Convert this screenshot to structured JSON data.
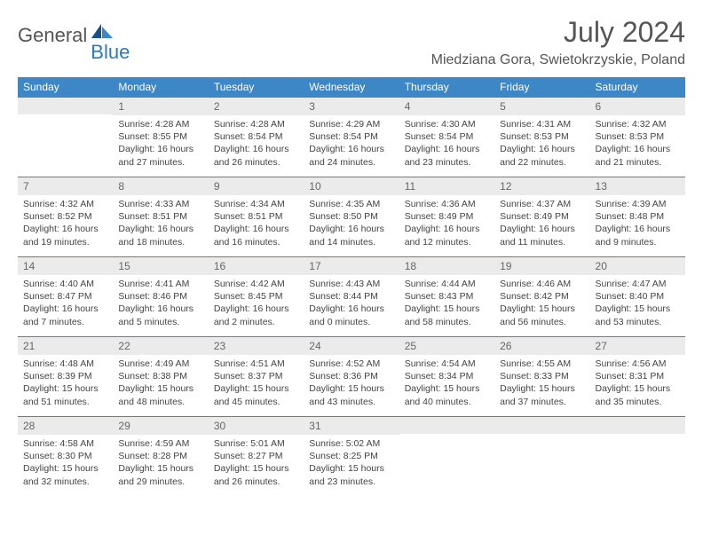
{
  "brand": {
    "general": "General",
    "blue": "Blue"
  },
  "title": "July 2024",
  "location": "Miedziana Gora, Swietokrzyskie, Poland",
  "colors": {
    "header_bg": "#3d87c7",
    "header_fg": "#ffffff",
    "daynum_bg": "#ebebeb",
    "row_border": "#3d87c7",
    "text": "#444444",
    "brand_gray": "#555555",
    "brand_blue": "#2b7abf"
  },
  "weekdays": [
    "Sunday",
    "Monday",
    "Tuesday",
    "Wednesday",
    "Thursday",
    "Friday",
    "Saturday"
  ],
  "weeks": [
    [
      {
        "n": "",
        "sr": "",
        "ss": "",
        "dl": ""
      },
      {
        "n": "1",
        "sr": "Sunrise: 4:28 AM",
        "ss": "Sunset: 8:55 PM",
        "dl": "Daylight: 16 hours and 27 minutes."
      },
      {
        "n": "2",
        "sr": "Sunrise: 4:28 AM",
        "ss": "Sunset: 8:54 PM",
        "dl": "Daylight: 16 hours and 26 minutes."
      },
      {
        "n": "3",
        "sr": "Sunrise: 4:29 AM",
        "ss": "Sunset: 8:54 PM",
        "dl": "Daylight: 16 hours and 24 minutes."
      },
      {
        "n": "4",
        "sr": "Sunrise: 4:30 AM",
        "ss": "Sunset: 8:54 PM",
        "dl": "Daylight: 16 hours and 23 minutes."
      },
      {
        "n": "5",
        "sr": "Sunrise: 4:31 AM",
        "ss": "Sunset: 8:53 PM",
        "dl": "Daylight: 16 hours and 22 minutes."
      },
      {
        "n": "6",
        "sr": "Sunrise: 4:32 AM",
        "ss": "Sunset: 8:53 PM",
        "dl": "Daylight: 16 hours and 21 minutes."
      }
    ],
    [
      {
        "n": "7",
        "sr": "Sunrise: 4:32 AM",
        "ss": "Sunset: 8:52 PM",
        "dl": "Daylight: 16 hours and 19 minutes."
      },
      {
        "n": "8",
        "sr": "Sunrise: 4:33 AM",
        "ss": "Sunset: 8:51 PM",
        "dl": "Daylight: 16 hours and 18 minutes."
      },
      {
        "n": "9",
        "sr": "Sunrise: 4:34 AM",
        "ss": "Sunset: 8:51 PM",
        "dl": "Daylight: 16 hours and 16 minutes."
      },
      {
        "n": "10",
        "sr": "Sunrise: 4:35 AM",
        "ss": "Sunset: 8:50 PM",
        "dl": "Daylight: 16 hours and 14 minutes."
      },
      {
        "n": "11",
        "sr": "Sunrise: 4:36 AM",
        "ss": "Sunset: 8:49 PM",
        "dl": "Daylight: 16 hours and 12 minutes."
      },
      {
        "n": "12",
        "sr": "Sunrise: 4:37 AM",
        "ss": "Sunset: 8:49 PM",
        "dl": "Daylight: 16 hours and 11 minutes."
      },
      {
        "n": "13",
        "sr": "Sunrise: 4:39 AM",
        "ss": "Sunset: 8:48 PM",
        "dl": "Daylight: 16 hours and 9 minutes."
      }
    ],
    [
      {
        "n": "14",
        "sr": "Sunrise: 4:40 AM",
        "ss": "Sunset: 8:47 PM",
        "dl": "Daylight: 16 hours and 7 minutes."
      },
      {
        "n": "15",
        "sr": "Sunrise: 4:41 AM",
        "ss": "Sunset: 8:46 PM",
        "dl": "Daylight: 16 hours and 5 minutes."
      },
      {
        "n": "16",
        "sr": "Sunrise: 4:42 AM",
        "ss": "Sunset: 8:45 PM",
        "dl": "Daylight: 16 hours and 2 minutes."
      },
      {
        "n": "17",
        "sr": "Sunrise: 4:43 AM",
        "ss": "Sunset: 8:44 PM",
        "dl": "Daylight: 16 hours and 0 minutes."
      },
      {
        "n": "18",
        "sr": "Sunrise: 4:44 AM",
        "ss": "Sunset: 8:43 PM",
        "dl": "Daylight: 15 hours and 58 minutes."
      },
      {
        "n": "19",
        "sr": "Sunrise: 4:46 AM",
        "ss": "Sunset: 8:42 PM",
        "dl": "Daylight: 15 hours and 56 minutes."
      },
      {
        "n": "20",
        "sr": "Sunrise: 4:47 AM",
        "ss": "Sunset: 8:40 PM",
        "dl": "Daylight: 15 hours and 53 minutes."
      }
    ],
    [
      {
        "n": "21",
        "sr": "Sunrise: 4:48 AM",
        "ss": "Sunset: 8:39 PM",
        "dl": "Daylight: 15 hours and 51 minutes."
      },
      {
        "n": "22",
        "sr": "Sunrise: 4:49 AM",
        "ss": "Sunset: 8:38 PM",
        "dl": "Daylight: 15 hours and 48 minutes."
      },
      {
        "n": "23",
        "sr": "Sunrise: 4:51 AM",
        "ss": "Sunset: 8:37 PM",
        "dl": "Daylight: 15 hours and 45 minutes."
      },
      {
        "n": "24",
        "sr": "Sunrise: 4:52 AM",
        "ss": "Sunset: 8:36 PM",
        "dl": "Daylight: 15 hours and 43 minutes."
      },
      {
        "n": "25",
        "sr": "Sunrise: 4:54 AM",
        "ss": "Sunset: 8:34 PM",
        "dl": "Daylight: 15 hours and 40 minutes."
      },
      {
        "n": "26",
        "sr": "Sunrise: 4:55 AM",
        "ss": "Sunset: 8:33 PM",
        "dl": "Daylight: 15 hours and 37 minutes."
      },
      {
        "n": "27",
        "sr": "Sunrise: 4:56 AM",
        "ss": "Sunset: 8:31 PM",
        "dl": "Daylight: 15 hours and 35 minutes."
      }
    ],
    [
      {
        "n": "28",
        "sr": "Sunrise: 4:58 AM",
        "ss": "Sunset: 8:30 PM",
        "dl": "Daylight: 15 hours and 32 minutes."
      },
      {
        "n": "29",
        "sr": "Sunrise: 4:59 AM",
        "ss": "Sunset: 8:28 PM",
        "dl": "Daylight: 15 hours and 29 minutes."
      },
      {
        "n": "30",
        "sr": "Sunrise: 5:01 AM",
        "ss": "Sunset: 8:27 PM",
        "dl": "Daylight: 15 hours and 26 minutes."
      },
      {
        "n": "31",
        "sr": "Sunrise: 5:02 AM",
        "ss": "Sunset: 8:25 PM",
        "dl": "Daylight: 15 hours and 23 minutes."
      },
      {
        "n": "",
        "sr": "",
        "ss": "",
        "dl": ""
      },
      {
        "n": "",
        "sr": "",
        "ss": "",
        "dl": ""
      },
      {
        "n": "",
        "sr": "",
        "ss": "",
        "dl": ""
      }
    ]
  ]
}
